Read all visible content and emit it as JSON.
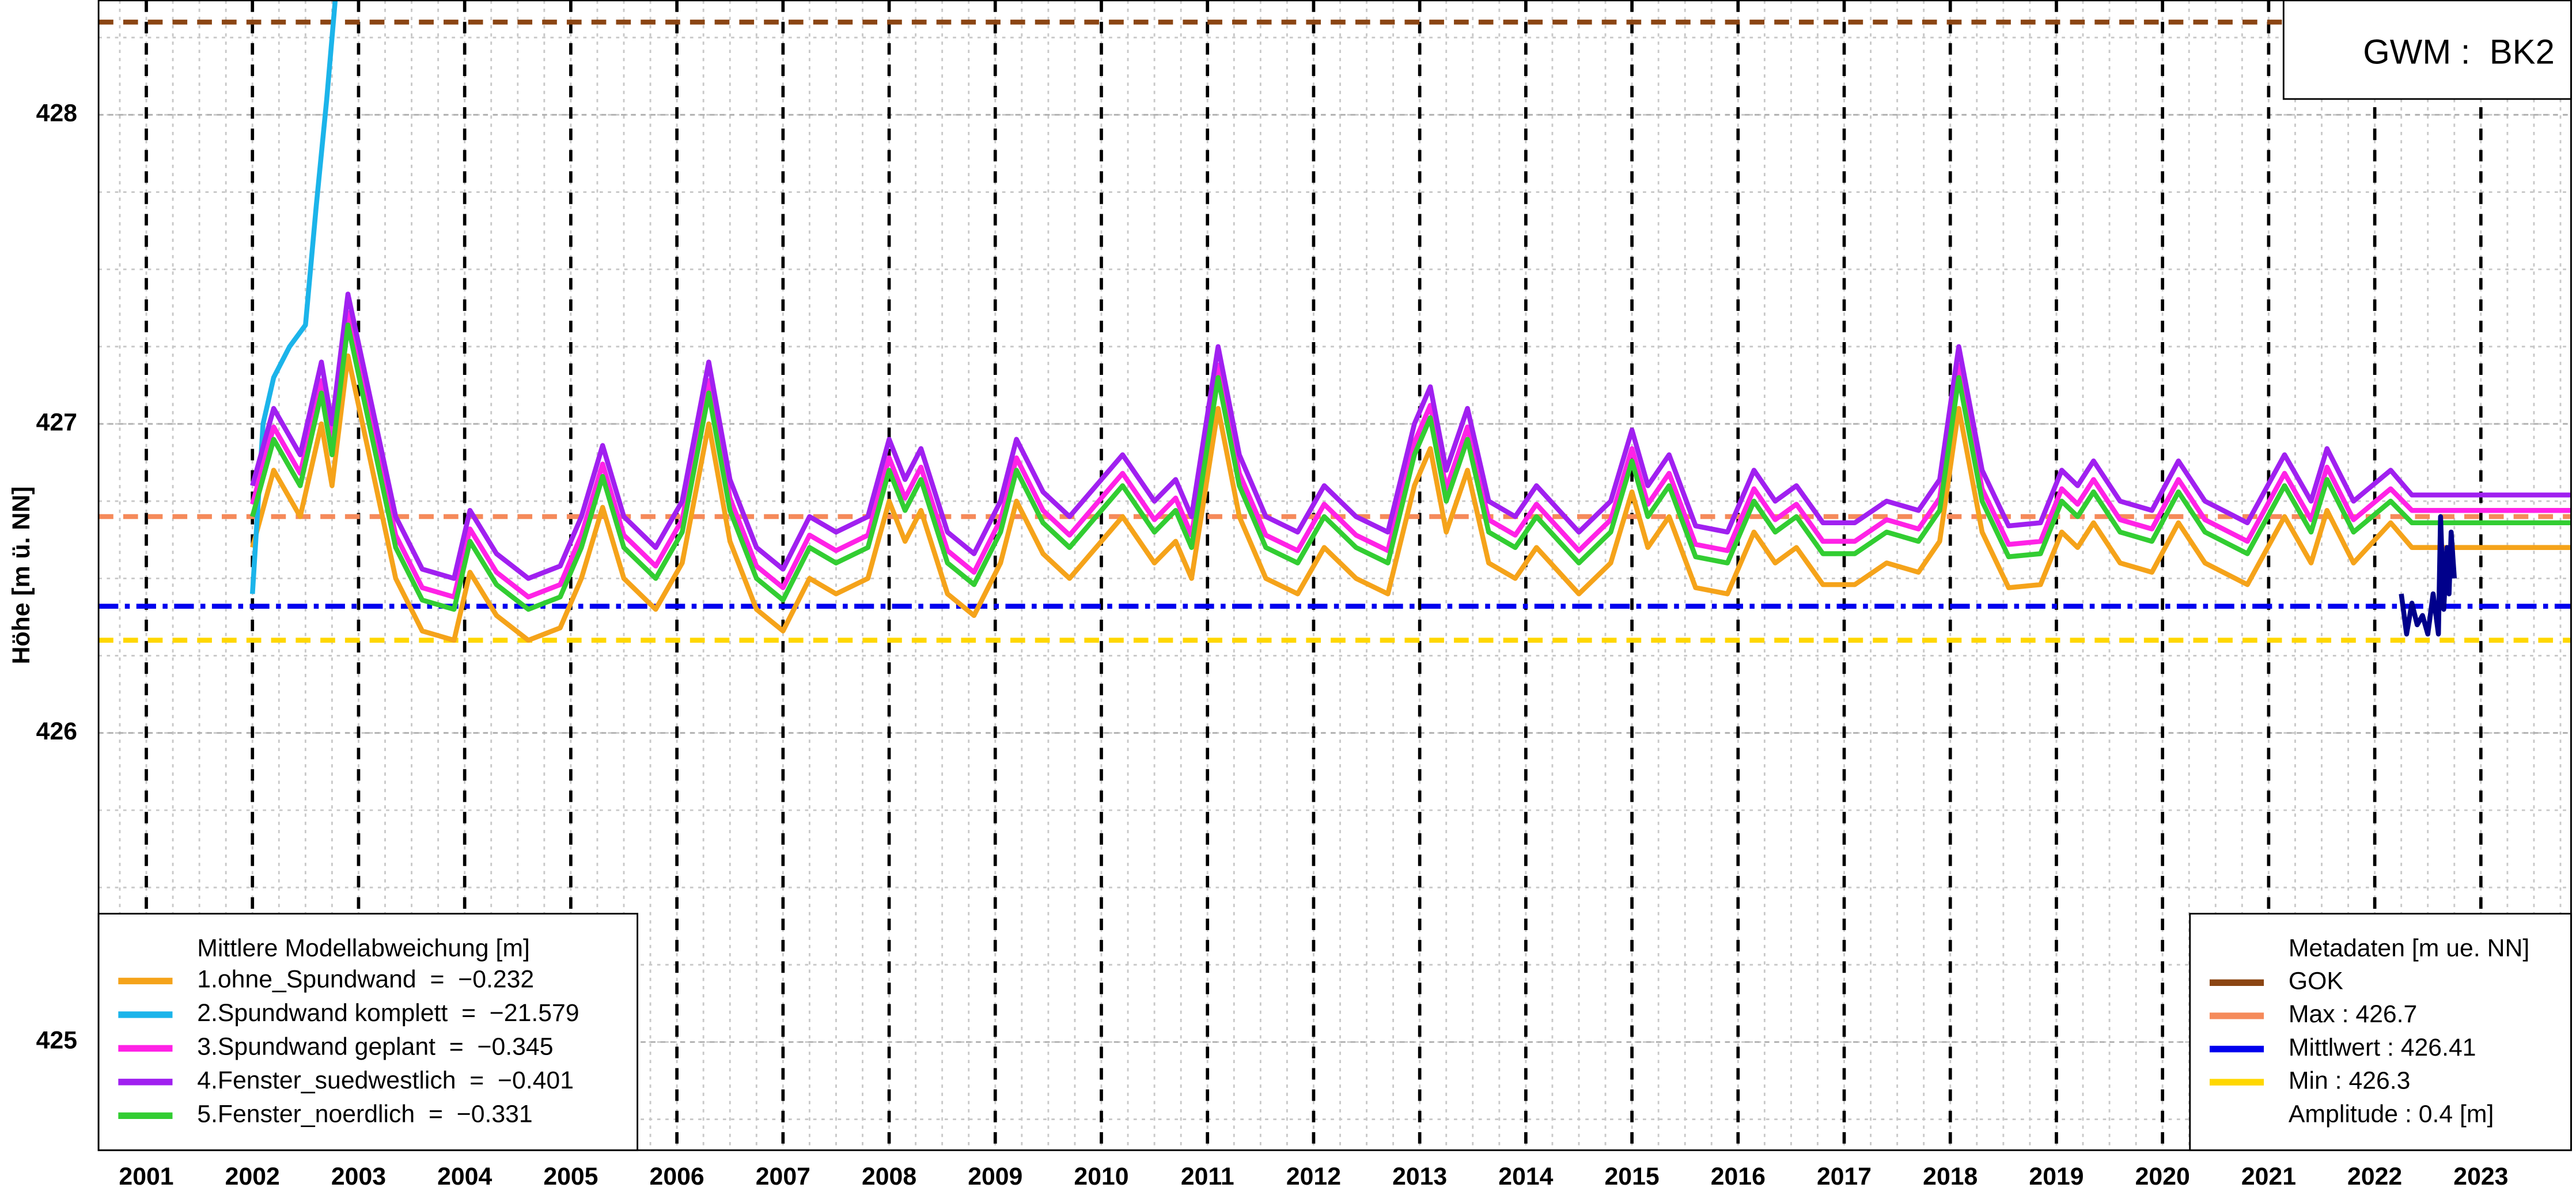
{
  "chart_data": {
    "type": "line",
    "ylabel": "Höhe [m ü. NN]",
    "xlim": [
      2000.55,
      2023.85
    ],
    "ylim": [
      424.65,
      428.37
    ],
    "xticks": [
      2001,
      2002,
      2003,
      2004,
      2005,
      2006,
      2007,
      2008,
      2009,
      2010,
      2011,
      2012,
      2013,
      2014,
      2015,
      2016,
      2017,
      2018,
      2019,
      2020,
      2021,
      2022,
      2023
    ],
    "yticks": [
      425,
      426,
      427,
      428
    ],
    "grid": true,
    "station_label": "GWM :  BK2",
    "legend_title": "Mittlere Modellabweichung [m]",
    "legend_corner": "bottom-left",
    "x": [
      2002.0,
      2002.2,
      2002.45,
      2002.65,
      2002.75,
      2002.9,
      2003.1,
      2003.35,
      2003.6,
      2003.9,
      2004.05,
      2004.3,
      2004.6,
      2004.9,
      2005.1,
      2005.3,
      2005.5,
      2005.8,
      2006.05,
      2006.3,
      2006.5,
      2006.75,
      2007.0,
      2007.25,
      2007.5,
      2007.8,
      2008.0,
      2008.15,
      2008.3,
      2008.55,
      2008.8,
      2009.05,
      2009.2,
      2009.45,
      2009.7,
      2010.0,
      2010.2,
      2010.5,
      2010.7,
      2010.85,
      2011.1,
      2011.3,
      2011.55,
      2011.85,
      2012.1,
      2012.4,
      2012.7,
      2012.95,
      2013.1,
      2013.25,
      2013.45,
      2013.65,
      2013.9,
      2014.1,
      2014.5,
      2014.8,
      2015.0,
      2015.15,
      2015.35,
      2015.6,
      2015.9,
      2016.15,
      2016.35,
      2016.55,
      2016.8,
      2017.1,
      2017.4,
      2017.7,
      2017.9,
      2018.08,
      2018.3,
      2018.55,
      2018.85,
      2019.05,
      2019.2,
      2019.35,
      2019.6,
      2019.9,
      2020.15,
      2020.4,
      2020.8,
      2021.15,
      2021.4,
      2021.55,
      2021.8,
      2022.15,
      2022.35,
      2023.85
    ],
    "series": [
      {
        "name": "1.ohne_Spundwand  =  −0.232",
        "color": "#f5a31a",
        "values": [
          426.6,
          426.85,
          426.7,
          427.0,
          426.8,
          427.22,
          426.9,
          426.5,
          426.33,
          426.3,
          426.52,
          426.38,
          426.3,
          426.34,
          426.5,
          426.73,
          426.5,
          426.4,
          426.55,
          427.0,
          426.62,
          426.4,
          426.33,
          426.5,
          426.45,
          426.5,
          426.75,
          426.62,
          426.72,
          426.45,
          426.38,
          426.55,
          426.75,
          426.58,
          426.5,
          426.62,
          426.7,
          426.55,
          426.62,
          426.5,
          427.05,
          426.7,
          426.5,
          426.45,
          426.6,
          426.5,
          426.45,
          426.8,
          426.92,
          426.65,
          426.85,
          426.55,
          426.5,
          426.6,
          426.45,
          426.55,
          426.78,
          426.6,
          426.7,
          426.47,
          426.45,
          426.65,
          426.55,
          426.6,
          426.48,
          426.48,
          426.55,
          426.52,
          426.62,
          427.05,
          426.65,
          426.47,
          426.48,
          426.65,
          426.6,
          426.68,
          426.55,
          426.52,
          426.68,
          426.55,
          426.48,
          426.7,
          426.55,
          426.72,
          426.55,
          426.68,
          426.6,
          426.6
        ]
      },
      {
        "name": "2.Spundwand komplett  =  −21.579",
        "color": "#1bb4ea",
        "x": [
          2002.0,
          2002.1,
          2002.2,
          2002.35,
          2002.5,
          2002.6,
          2002.7,
          2002.8
        ],
        "values": [
          426.45,
          427.0,
          427.15,
          427.25,
          427.32,
          427.7,
          428.05,
          428.45
        ]
      },
      {
        "name": "3.Spundwand geplant  =  −0.345",
        "color": "#ff22e6",
        "values": [
          426.74,
          426.99,
          426.84,
          427.14,
          426.94,
          427.36,
          427.04,
          426.64,
          426.47,
          426.44,
          426.66,
          426.52,
          426.44,
          426.48,
          426.64,
          426.87,
          426.64,
          426.54,
          426.69,
          427.14,
          426.76,
          426.54,
          426.47,
          426.64,
          426.59,
          426.64,
          426.89,
          426.76,
          426.86,
          426.59,
          426.52,
          426.69,
          426.89,
          426.72,
          426.64,
          426.76,
          426.84,
          426.69,
          426.76,
          426.64,
          427.19,
          426.84,
          426.64,
          426.59,
          426.74,
          426.64,
          426.59,
          426.94,
          427.06,
          426.79,
          426.99,
          426.69,
          426.64,
          426.74,
          426.59,
          426.69,
          426.92,
          426.74,
          426.84,
          426.61,
          426.59,
          426.79,
          426.69,
          426.74,
          426.62,
          426.62,
          426.69,
          426.66,
          426.76,
          427.19,
          426.79,
          426.61,
          426.62,
          426.79,
          426.74,
          426.82,
          426.69,
          426.66,
          426.82,
          426.69,
          426.62,
          426.84,
          426.69,
          426.86,
          426.69,
          426.79,
          426.72,
          426.72
        ]
      },
      {
        "name": "4.Fenster_suedwestlich  =  −0.401",
        "color": "#a020f0",
        "values": [
          426.8,
          427.05,
          426.9,
          427.2,
          427.0,
          427.42,
          427.1,
          426.7,
          426.53,
          426.5,
          426.72,
          426.58,
          426.5,
          426.54,
          426.7,
          426.93,
          426.7,
          426.6,
          426.75,
          427.2,
          426.82,
          426.6,
          426.53,
          426.7,
          426.65,
          426.7,
          426.95,
          426.82,
          426.92,
          426.65,
          426.58,
          426.75,
          426.95,
          426.78,
          426.7,
          426.82,
          426.9,
          426.75,
          426.82,
          426.7,
          427.25,
          426.9,
          426.7,
          426.65,
          426.8,
          426.7,
          426.65,
          427.0,
          427.12,
          426.85,
          427.05,
          426.75,
          426.7,
          426.8,
          426.65,
          426.75,
          426.98,
          426.8,
          426.9,
          426.67,
          426.65,
          426.85,
          426.75,
          426.8,
          426.68,
          426.68,
          426.75,
          426.72,
          426.82,
          427.25,
          426.85,
          426.67,
          426.68,
          426.85,
          426.8,
          426.88,
          426.75,
          426.72,
          426.88,
          426.75,
          426.68,
          426.9,
          426.75,
          426.92,
          426.75,
          426.85,
          426.77,
          426.77
        ]
      },
      {
        "name": "5.Fenster_noerdlich  =  −0.331",
        "color": "#32cd32",
        "values": [
          426.7,
          426.95,
          426.8,
          427.1,
          426.9,
          427.32,
          427.0,
          426.6,
          426.43,
          426.4,
          426.62,
          426.48,
          426.4,
          426.44,
          426.6,
          426.83,
          426.6,
          426.5,
          426.65,
          427.1,
          426.72,
          426.5,
          426.43,
          426.6,
          426.55,
          426.6,
          426.85,
          426.72,
          426.82,
          426.55,
          426.48,
          426.65,
          426.85,
          426.68,
          426.6,
          426.72,
          426.8,
          426.65,
          426.72,
          426.6,
          427.15,
          426.8,
          426.6,
          426.55,
          426.7,
          426.6,
          426.55,
          426.9,
          427.02,
          426.75,
          426.95,
          426.65,
          426.6,
          426.7,
          426.55,
          426.65,
          426.88,
          426.7,
          426.8,
          426.57,
          426.55,
          426.75,
          426.65,
          426.7,
          426.58,
          426.58,
          426.65,
          426.62,
          426.72,
          427.15,
          426.75,
          426.57,
          426.58,
          426.75,
          426.7,
          426.78,
          426.65,
          426.62,
          426.78,
          426.65,
          426.58,
          426.8,
          426.65,
          426.82,
          426.65,
          426.75,
          426.68,
          426.68
        ]
      }
    ],
    "observed": {
      "color": "#00008b",
      "x": [
        2022.25,
        2022.3,
        2022.35,
        2022.4,
        2022.45,
        2022.5,
        2022.55,
        2022.6,
        2022.62,
        2022.65,
        2022.68,
        2022.7,
        2022.72,
        2022.75
      ],
      "values": [
        426.45,
        426.32,
        426.42,
        426.35,
        426.38,
        426.32,
        426.45,
        426.32,
        426.7,
        426.4,
        426.6,
        426.45,
        426.65,
        426.5
      ]
    },
    "meta_legend_title": "Metadaten [m ue. NN]",
    "reference_lines": [
      {
        "label": "GOK",
        "value": 428.3,
        "color": "#8b4513",
        "linestyle": "dashed"
      },
      {
        "label": "Max : 426.7",
        "value": 426.7,
        "color": "#f58a5a",
        "linestyle": "dashed"
      },
      {
        "label": "Mittlwert : 426.41",
        "value": 426.41,
        "color": "#0000ee",
        "linestyle": "dashdot"
      },
      {
        "label": "Min : 426.3",
        "value": 426.3,
        "color": "#ffd700",
        "linestyle": "dashed"
      }
    ],
    "meta_note": "Amplitude : 0.4 [m]"
  }
}
